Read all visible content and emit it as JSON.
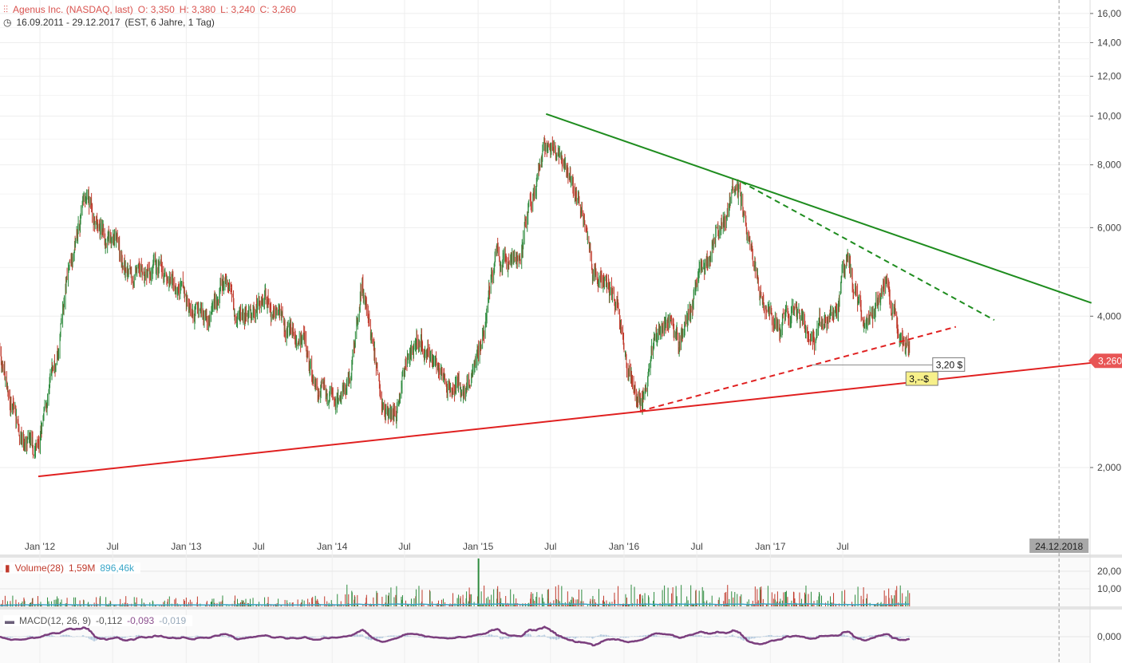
{
  "header": {
    "name": "Agenus Inc. (NASDAQ, last)",
    "open": "O: 3,350",
    "high": "H: 3,380",
    "low": "L: 3,240",
    "close": "C: 3,260",
    "range": "16.09.2011 - 29.12.2017",
    "range_info": "(EST, 6 Jahre, 1 Tag)",
    "chart-icon": "candlestick-settings-icon",
    "clock-icon": "clock-icon"
  },
  "volume_panel": {
    "label": "Volume(28)",
    "value": "1,59M",
    "avg": "896,46k",
    "ticks": [
      "20,00",
      "10,00"
    ],
    "color": "#c0392b",
    "avg_color": "#3aa6c8"
  },
  "macd_panel": {
    "label": "MACD(12, 26, 9)",
    "macd": "-0,112",
    "signal": "-0,093",
    "hist": "-0,019",
    "tick": "0,000",
    "color": "#7b3f7e"
  },
  "chart_data": {
    "type": "candlestick",
    "y_scale": "log",
    "ylim": [
      1.5,
      17
    ],
    "y_ticks": [
      "16,00",
      "14,00",
      "12,00",
      "10,00",
      "8,000",
      "6,000",
      "4,000",
      "2,000"
    ],
    "y_tick_values": [
      16,
      14,
      12,
      10,
      8,
      6,
      4,
      2
    ],
    "x_ticks": [
      "Jan '12",
      "Jul",
      "Jan '13",
      "Jul",
      "Jan '14",
      "Jul",
      "Jan '15",
      "Jul",
      "Jan '16",
      "Jul",
      "Jan '17",
      "Jul"
    ],
    "x_tick_dates": [
      "2012-01-01",
      "2012-07-01",
      "2013-01-01",
      "2013-07-01",
      "2014-01-01",
      "2014-07-01",
      "2015-01-01",
      "2015-07-01",
      "2016-01-01",
      "2016-07-01",
      "2017-01-01",
      "2017-07-01"
    ],
    "xlim": [
      "2011-09-16",
      "2019-03-15"
    ],
    "crosshair_date": "24.12.2018",
    "last_price_label": "3,260",
    "grid": true,
    "up_color": "#2e8b3e",
    "down_color": "#c0392b",
    "monthly_closes": {
      "start": "2011-09",
      "values": [
        3.53,
        2.74,
        2.36,
        2.04,
        2.55,
        3.28,
        5.1,
        6.6,
        6.1,
        5.7,
        5.3,
        4.9,
        4.74,
        4.65,
        4.57,
        4.4,
        3.9,
        4.1,
        4.4,
        4.57,
        4.2,
        3.9,
        4.57,
        4.1,
        3.8,
        3.67,
        2.83,
        2.64,
        2.64,
        3.05,
        4.9,
        3.42,
        2.74,
        2.64,
        3.42,
        3.42,
        3.17,
        2.94,
        2.94,
        3.05,
        3.9,
        5.3,
        5.1,
        5.3,
        7.1,
        9.1,
        8.8,
        7.9,
        6.8,
        4.9,
        4.74,
        4.2,
        3.17,
        2.74,
        3.42,
        4.2,
        3.53,
        4.2,
        4.57,
        5.9,
        6.6,
        7.1,
        5.1,
        4.2,
        4.1,
        4.1,
        3.9,
        3.53,
        3.67,
        4.1,
        5.1,
        3.8,
        4.2,
        4.57,
        3.9,
        3.26
      ]
    },
    "trendlines": [
      {
        "style": "solid",
        "color": "#e02020",
        "from": [
          "2011-12-28",
          1.92
        ],
        "to": [
          "2019-03-15",
          3.23
        ]
      },
      {
        "style": "solid",
        "color": "#1e8c1e",
        "from": [
          "2015-06-20",
          10.1
        ],
        "to": [
          "2019-03-15",
          4.25
        ]
      },
      {
        "style": "dashed",
        "color": "#1e8c1e",
        "from": [
          "2016-10-20",
          7.4
        ],
        "to": [
          "2018-07-15",
          3.93
        ]
      },
      {
        "style": "dashed",
        "color": "#e02020",
        "from": [
          "2016-02-10",
          2.59
        ],
        "to": [
          "2018-04-10",
          3.81
        ]
      },
      {
        "style": "thin",
        "color": "#888888",
        "from": [
          "2017-04-15",
          3.2
        ],
        "to": [
          "2018-02-10",
          3.2
        ]
      }
    ],
    "annotations": [
      {
        "text": "3,20 $",
        "date": "2018-02-15",
        "price": 3.2,
        "bg": "#ffffff"
      },
      {
        "text": "3,--$",
        "date": "2017-12-10",
        "price": 3.0,
        "bg": "#f7f08a"
      }
    ]
  }
}
